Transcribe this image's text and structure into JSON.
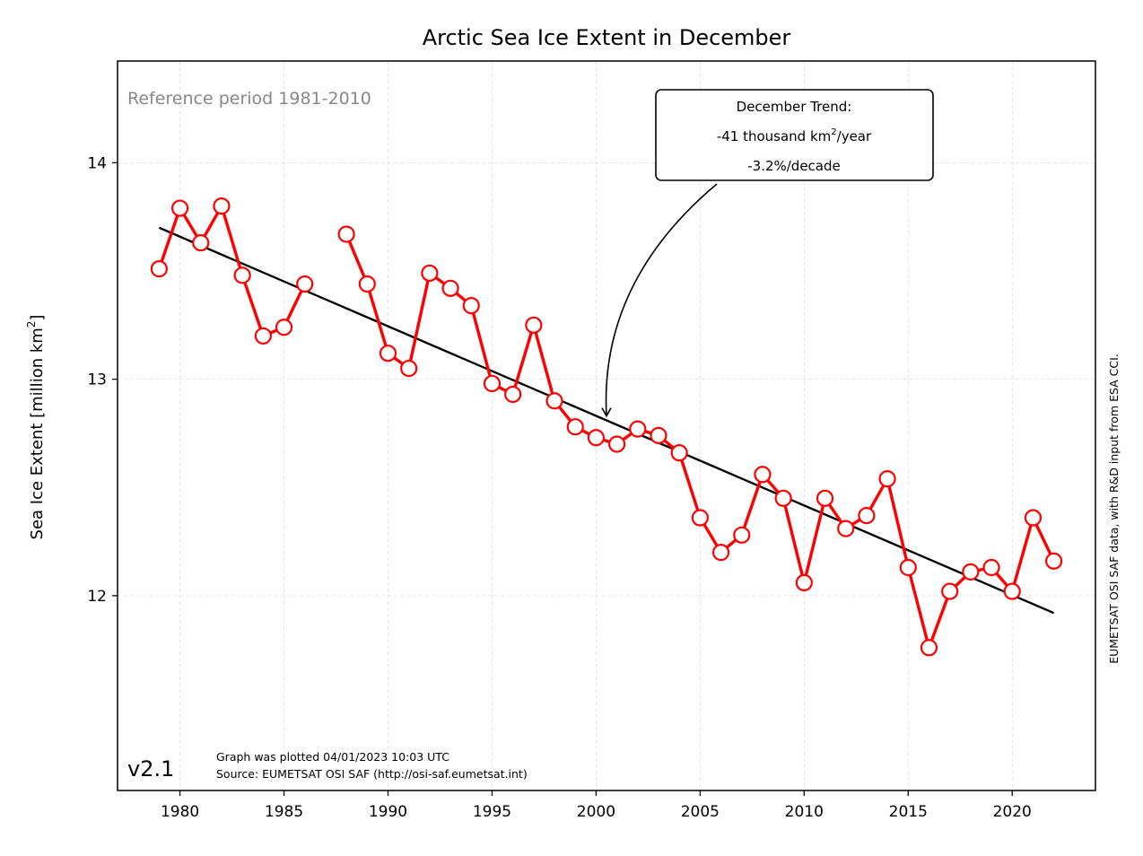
{
  "chart_data": {
    "type": "line",
    "title": "Arctic Sea Ice Extent in December",
    "ylabel_main": "Sea Ice Extent [million km",
    "ylabel_sup": "2",
    "ylabel_end": "]",
    "xlim": [
      1977,
      2024
    ],
    "ylim": [
      11.1,
      14.47
    ],
    "xticks": [
      1980,
      1985,
      1990,
      1995,
      2000,
      2005,
      2010,
      2015,
      2020
    ],
    "yticks": [
      12,
      13,
      14
    ],
    "grid": true,
    "colors": {
      "series": "#ff0000",
      "trend": "#000000",
      "marker_fill": "#ffffff"
    },
    "series": [
      {
        "x": [
          1979,
          1980,
          1981,
          1982,
          1983,
          1984,
          1985,
          1986,
          1987,
          1988,
          1989,
          1990,
          1991,
          1992,
          1993,
          1994,
          1995,
          1996,
          1997,
          1998,
          1999,
          2000,
          2001,
          2002,
          2003,
          2004,
          2005,
          2006,
          2007,
          2008,
          2009,
          2010,
          2011,
          2012,
          2013,
          2014,
          2015,
          2016,
          2017,
          2018,
          2019,
          2020,
          2021,
          2022
        ],
        "values": [
          13.51,
          13.79,
          13.63,
          13.8,
          13.48,
          13.2,
          13.24,
          13.44,
          null,
          13.67,
          13.44,
          13.12,
          13.05,
          13.49,
          13.42,
          13.34,
          12.98,
          12.93,
          13.25,
          12.9,
          12.78,
          12.73,
          12.7,
          12.77,
          12.74,
          12.66,
          12.36,
          12.2,
          12.28,
          12.56,
          12.45,
          12.06,
          12.45,
          12.31,
          12.37,
          12.54,
          12.13,
          11.76,
          12.02,
          12.11,
          12.13,
          12.02,
          12.36,
          12.16
        ]
      }
    ],
    "trend": {
      "x": [
        1979,
        2022
      ],
      "values": [
        13.7,
        11.92
      ]
    },
    "annotations": {
      "reference": "Reference period 1981-2010",
      "trend_box_line1": "December Trend:",
      "trend_box_line2_a": "-41 thousand km",
      "trend_box_line2_sup": "2",
      "trend_box_line2_b": "/year",
      "trend_box_line3": "-3.2%/decade",
      "arrow_target": {
        "x": 2000.5,
        "y": 12.83
      },
      "version": "v2.1",
      "plotted": "Graph was plotted 04/01/2023 10:03 UTC",
      "source": "Source: EUMETSAT OSI SAF (http://osi-saf.eumetsat.int)",
      "side_credit": "EUMETSAT OSI SAF data, with R&D input from ESA CCI."
    }
  }
}
